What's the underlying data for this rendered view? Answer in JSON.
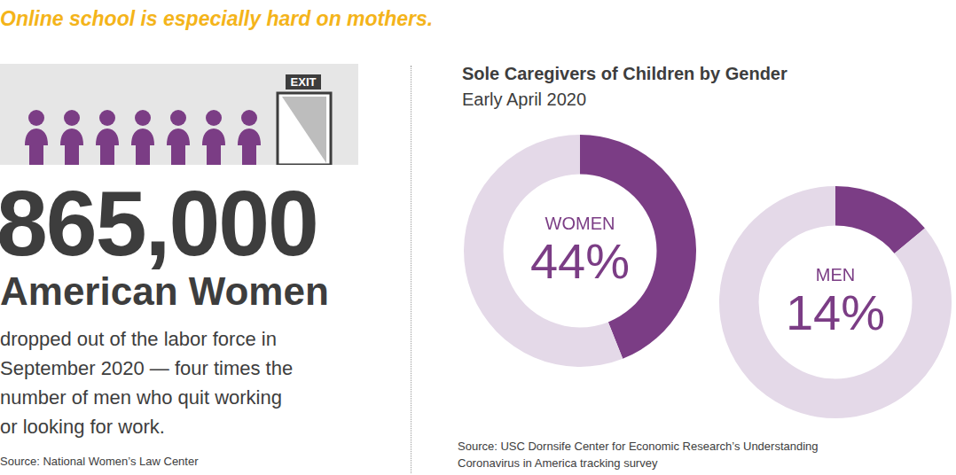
{
  "headline": "Online school is especially hard on mothers.",
  "exit_sign": "EXIT",
  "stat": {
    "figure": "865,000",
    "subject": "American Women",
    "description_lines": [
      "dropped out of the labor force in",
      "September 2020 — four times the",
      "number of men who quit working",
      "or looking for work."
    ],
    "source": "Source: National Women’s Law Center"
  },
  "chart_group": {
    "title": "Sole Caregivers of Children by Gender",
    "subtitle": "Early April 2020",
    "source_lines": [
      "Source: USC Dornsife Center for Economic Research’s Understanding",
      "Coronavirus in America tracking survey"
    ]
  },
  "chart_data": [
    {
      "type": "doughnut",
      "title": "WOMEN",
      "values": [
        44,
        56
      ],
      "value_labels": [
        "44%",
        null
      ],
      "colors": [
        "#7b3d85",
        "#e4d9e8"
      ],
      "data_labels": true,
      "tick_labels": false
    },
    {
      "type": "doughnut",
      "title": "MEN",
      "values": [
        14,
        86
      ],
      "value_labels": [
        "14%",
        null
      ],
      "colors": [
        "#7b3d85",
        "#e4d9e8"
      ],
      "data_labels": true,
      "tick_labels": false
    }
  ]
}
